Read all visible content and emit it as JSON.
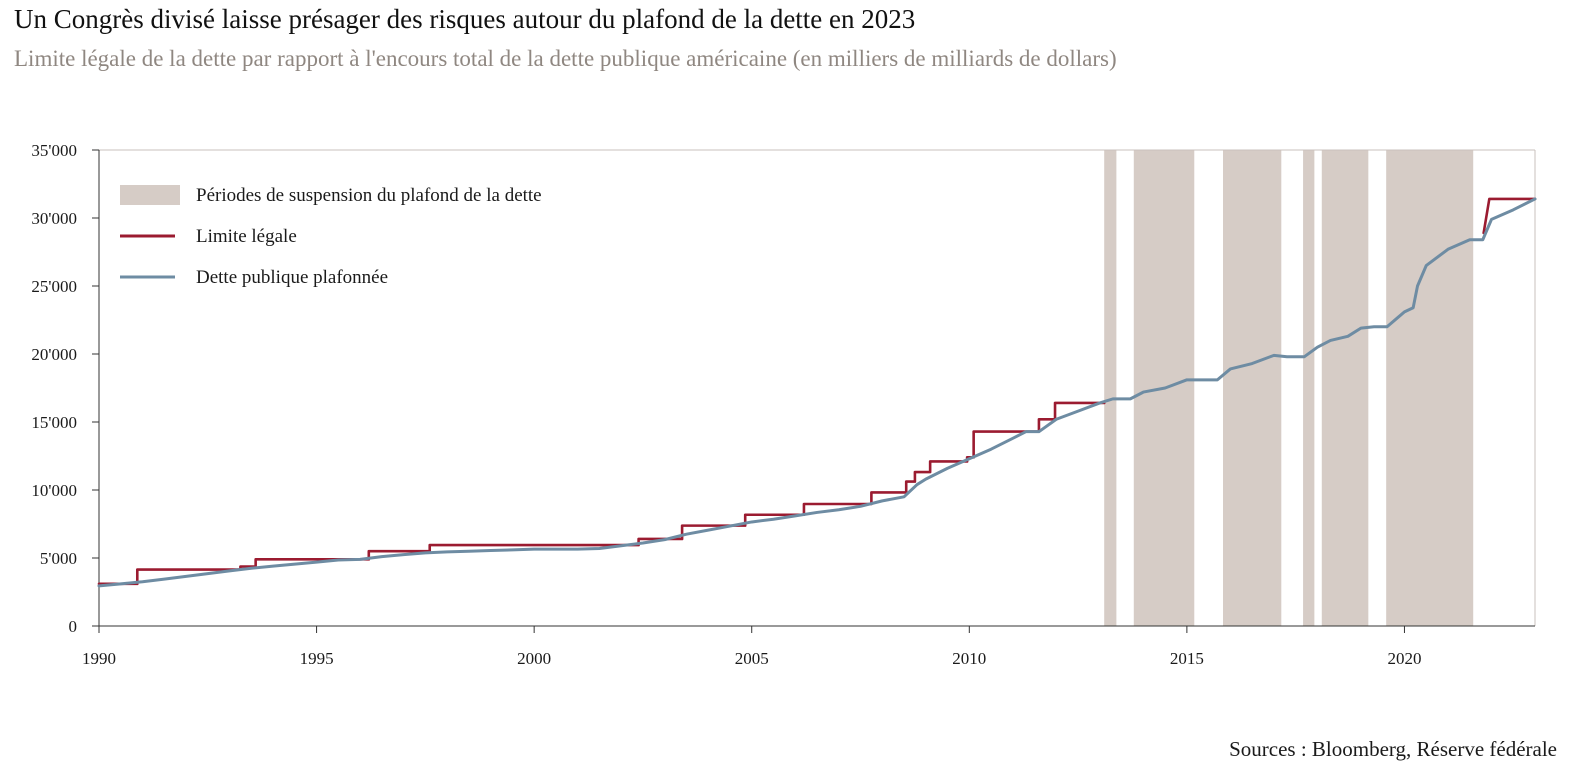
{
  "title": "Un Congrès divisé laisse présager des risques autour du plafond de la dette en 2023",
  "subtitle": "Limite légale de la dette par rapport à l'encours total de la dette publique américaine (en milliers de milliards de dollars)",
  "source": "Sources : Bloomberg, Réserve fédérale",
  "colors": {
    "limit": "#9b1b30",
    "debt": "#6e8ca3",
    "suspension": "#d6ccc6",
    "axis": "#c9c1bc"
  },
  "chart_data": {
    "type": "line",
    "xlim": [
      1990,
      2023
    ],
    "ylim": [
      0,
      35000
    ],
    "x_ticks": [
      1990,
      1995,
      2000,
      2005,
      2010,
      2015,
      2020
    ],
    "x_tick_labels": [
      "1990",
      "1995",
      "2000",
      "2005",
      "2010",
      "2015",
      "2020"
    ],
    "y_ticks": [
      0,
      5000,
      10000,
      15000,
      20000,
      25000,
      30000,
      35000
    ],
    "y_tick_labels": [
      "0",
      "5'000",
      "10'000",
      "15'000",
      "20'000",
      "25'000",
      "30'000",
      "35'000"
    ],
    "grid": false,
    "legend_position": "top-left",
    "legend": [
      {
        "kind": "area",
        "label": "Périodes de suspension du plafond de la dette"
      },
      {
        "kind": "limit",
        "label": "Limite légale"
      },
      {
        "kind": "debt",
        "label": "Dette publique plafonnée"
      }
    ],
    "suspension_periods": [
      [
        2013.1,
        2013.38
      ],
      [
        2013.78,
        2015.17
      ],
      [
        2015.83,
        2017.17
      ],
      [
        2017.67,
        2017.93
      ],
      [
        2018.1,
        2019.17
      ],
      [
        2019.58,
        2021.58
      ]
    ],
    "series": [
      {
        "name": "Limite légale",
        "kind": "limit",
        "step": true,
        "points": [
          [
            1990.0,
            3100
          ],
          [
            1990.88,
            3100
          ],
          [
            1990.88,
            4150
          ],
          [
            1993.25,
            4150
          ],
          [
            1993.25,
            4370
          ],
          [
            1993.6,
            4370
          ],
          [
            1993.6,
            4900
          ],
          [
            1996.2,
            4900
          ],
          [
            1996.2,
            5500
          ],
          [
            1997.6,
            5500
          ],
          [
            1997.6,
            5950
          ],
          [
            2002.4,
            5950
          ],
          [
            2002.4,
            6400
          ],
          [
            2003.4,
            6400
          ],
          [
            2003.4,
            7380
          ],
          [
            2004.85,
            7380
          ],
          [
            2004.85,
            8180
          ],
          [
            2006.2,
            8180
          ],
          [
            2006.2,
            8970
          ],
          [
            2007.75,
            8970
          ],
          [
            2007.75,
            9820
          ],
          [
            2008.55,
            9820
          ],
          [
            2008.55,
            10620
          ],
          [
            2008.75,
            10620
          ],
          [
            2008.75,
            11320
          ],
          [
            2009.1,
            11320
          ],
          [
            2009.1,
            12100
          ],
          [
            2009.95,
            12100
          ],
          [
            2009.95,
            12400
          ],
          [
            2010.1,
            12400
          ],
          [
            2010.1,
            14300
          ],
          [
            2011.6,
            14300
          ],
          [
            2011.6,
            15200
          ],
          [
            2011.97,
            15200
          ],
          [
            2011.97,
            16400
          ],
          [
            2013.1,
            16400
          ]
        ]
      },
      {
        "name": "Limite légale",
        "kind": "limit",
        "step": true,
        "points": [
          [
            2021.82,
            28900
          ],
          [
            2021.95,
            31400
          ],
          [
            2023.0,
            31400
          ]
        ]
      },
      {
        "name": "Dette publique plafonnée",
        "kind": "debt",
        "step": false,
        "points": [
          [
            1990.0,
            2950
          ],
          [
            1990.5,
            3100
          ],
          [
            1991.0,
            3250
          ],
          [
            1991.5,
            3450
          ],
          [
            1992.0,
            3650
          ],
          [
            1992.5,
            3850
          ],
          [
            1993.0,
            4050
          ],
          [
            1993.5,
            4250
          ],
          [
            1994.0,
            4400
          ],
          [
            1994.5,
            4550
          ],
          [
            1995.0,
            4700
          ],
          [
            1995.5,
            4850
          ],
          [
            1996.0,
            4900
          ],
          [
            1996.5,
            5100
          ],
          [
            1997.0,
            5250
          ],
          [
            1997.5,
            5380
          ],
          [
            1998.0,
            5450
          ],
          [
            1998.5,
            5500
          ],
          [
            1999.0,
            5550
          ],
          [
            1999.5,
            5600
          ],
          [
            2000.0,
            5650
          ],
          [
            2000.5,
            5650
          ],
          [
            2001.0,
            5650
          ],
          [
            2001.5,
            5700
          ],
          [
            2002.0,
            5900
          ],
          [
            2002.5,
            6100
          ],
          [
            2003.0,
            6350
          ],
          [
            2003.5,
            6750
          ],
          [
            2004.0,
            7050
          ],
          [
            2004.5,
            7350
          ],
          [
            2005.0,
            7650
          ],
          [
            2005.5,
            7850
          ],
          [
            2006.0,
            8100
          ],
          [
            2006.5,
            8350
          ],
          [
            2007.0,
            8550
          ],
          [
            2007.5,
            8800
          ],
          [
            2008.0,
            9200
          ],
          [
            2008.5,
            9500
          ],
          [
            2008.8,
            10400
          ],
          [
            2009.0,
            10800
          ],
          [
            2009.5,
            11600
          ],
          [
            2010.0,
            12300
          ],
          [
            2010.5,
            13000
          ],
          [
            2011.0,
            13800
          ],
          [
            2011.3,
            14290
          ],
          [
            2011.6,
            14290
          ],
          [
            2012.0,
            15200
          ],
          [
            2012.5,
            15800
          ],
          [
            2013.0,
            16400
          ],
          [
            2013.3,
            16700
          ],
          [
            2013.7,
            16700
          ],
          [
            2014.0,
            17200
          ],
          [
            2014.5,
            17500
          ],
          [
            2015.0,
            18100
          ],
          [
            2015.3,
            18100
          ],
          [
            2015.7,
            18100
          ],
          [
            2016.0,
            18900
          ],
          [
            2016.5,
            19300
          ],
          [
            2017.0,
            19900
          ],
          [
            2017.3,
            19800
          ],
          [
            2017.7,
            19800
          ],
          [
            2018.0,
            20500
          ],
          [
            2018.3,
            21000
          ],
          [
            2018.7,
            21300
          ],
          [
            2019.0,
            21900
          ],
          [
            2019.3,
            22000
          ],
          [
            2019.6,
            22000
          ],
          [
            2020.0,
            23100
          ],
          [
            2020.2,
            23400
          ],
          [
            2020.3,
            25000
          ],
          [
            2020.5,
            26500
          ],
          [
            2021.0,
            27700
          ],
          [
            2021.5,
            28400
          ],
          [
            2021.8,
            28400
          ],
          [
            2022.0,
            29900
          ],
          [
            2022.5,
            30600
          ],
          [
            2023.0,
            31400
          ]
        ]
      }
    ]
  }
}
